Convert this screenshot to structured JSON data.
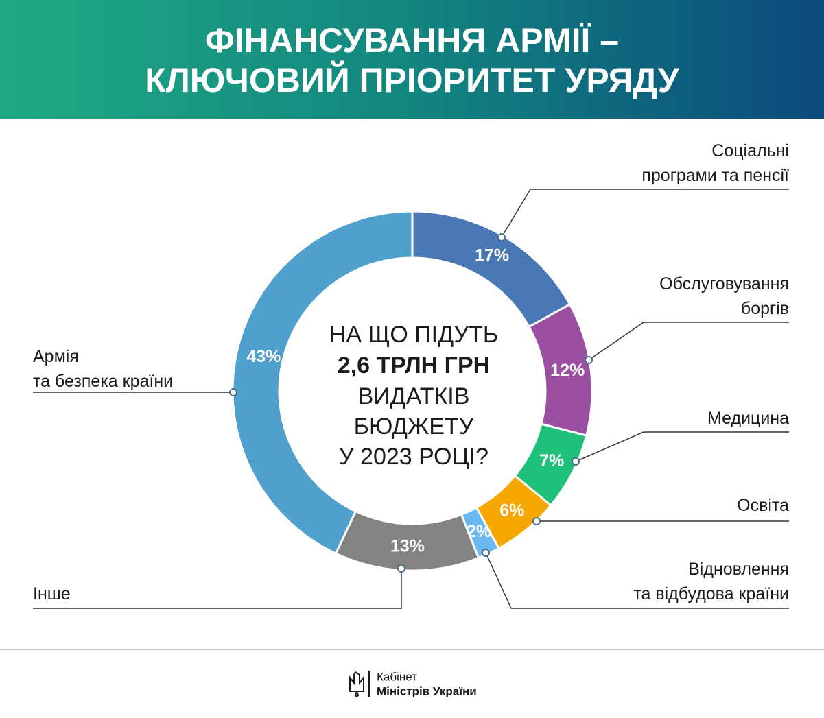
{
  "chart_data": {
    "type": "donut",
    "title": "ФІНАНСУВАННЯ АРМІЇ –\nКЛЮЧОВИЙ ПРІОРИТЕТ УРЯДУ",
    "center_text": [
      "НА ЩО ПІДУТЬ",
      "2,6 ТРЛН ГРН",
      "ВИДАТКІВ",
      "БЮДЖЕТУ",
      "У 2023 РОЦІ?"
    ],
    "categories": [
      "Соціальні\nпрограми та пенсії",
      "Обслуговування\nборгів",
      "Медицина",
      "Освіта",
      "Відновлення\nта відбудова країни",
      "Інше",
      "Армія\nта безпека країни"
    ],
    "values": [
      17,
      12,
      7,
      6,
      2,
      13,
      43
    ],
    "value_labels": [
      "17%",
      "12%",
      "7%",
      "6%",
      "2%",
      "13%",
      "43%"
    ],
    "colors": [
      "#4a78b5",
      "#9b4fa0",
      "#1fc07a",
      "#f7a800",
      "#6cb8f0",
      "#838383",
      "#4fa0cc"
    ]
  },
  "footer": {
    "line1": "Кабінет",
    "line2": "Міністрів України"
  }
}
